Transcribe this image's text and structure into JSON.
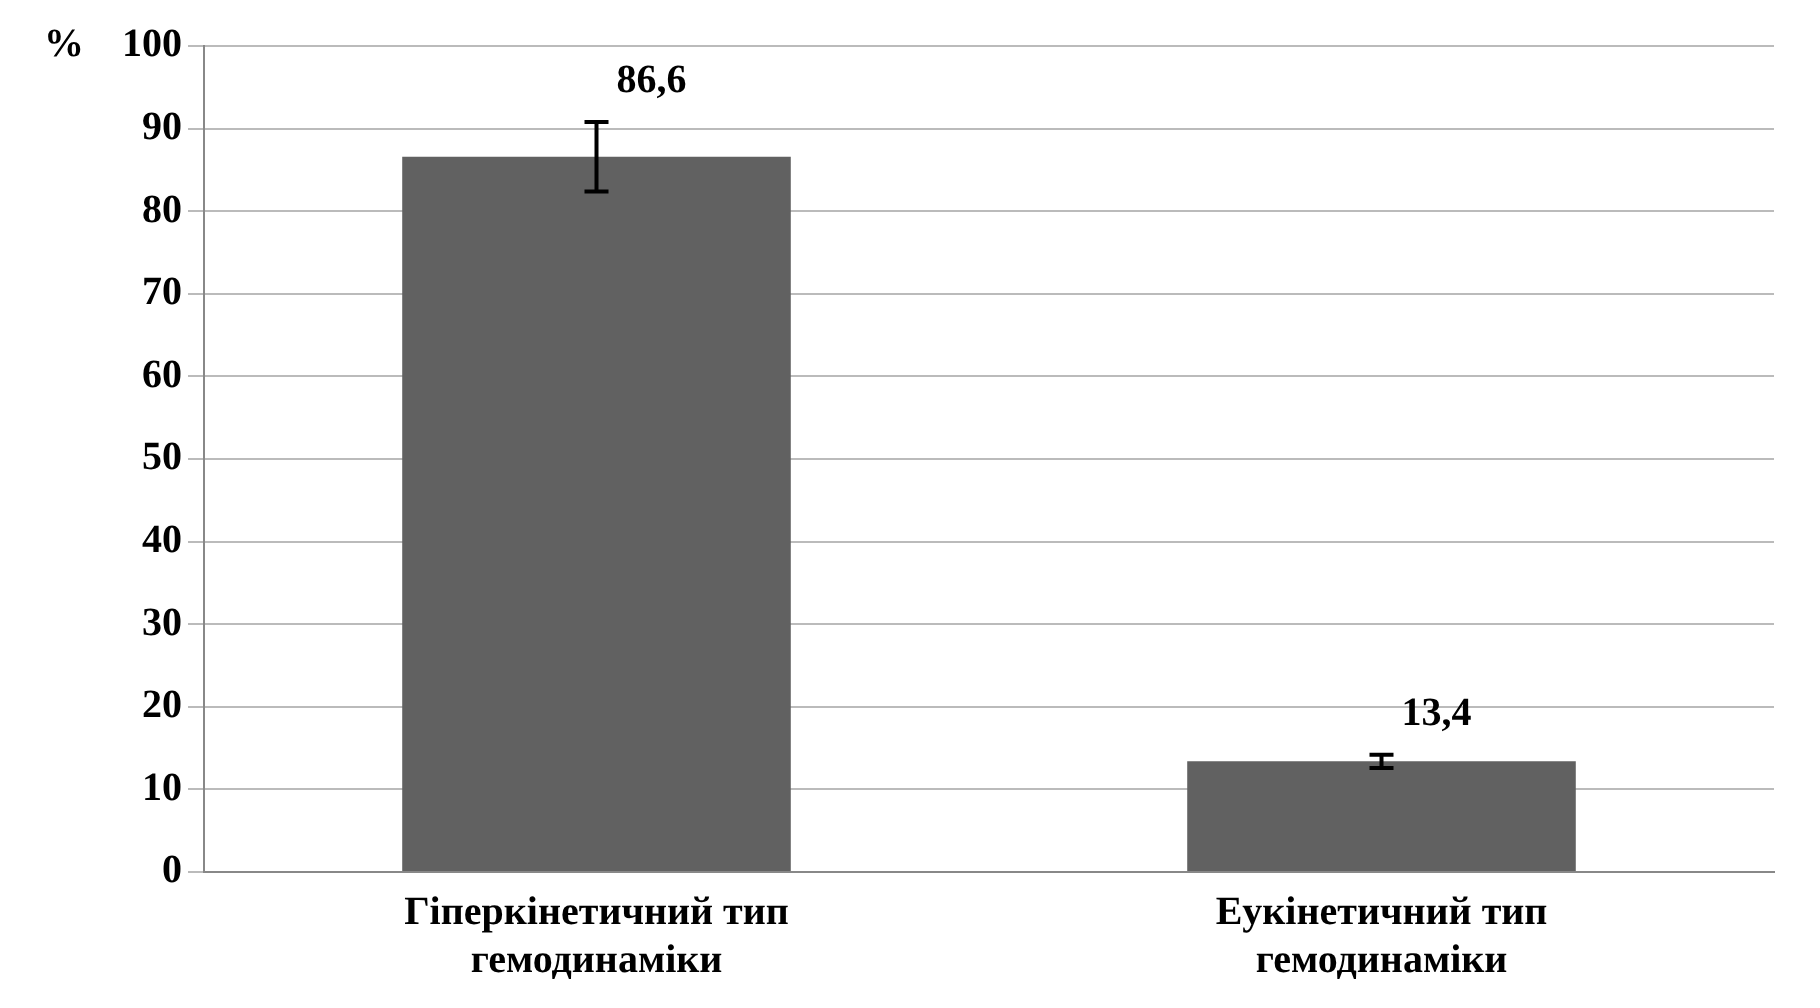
{
  "chart_data": {
    "type": "bar",
    "ylabel": "%",
    "categories": [
      "Гіперкінетичний тип гемодинаміки",
      "Еукінетичний тип гемодинаміки"
    ],
    "values": [
      86.6,
      13.4
    ],
    "color": "#616161",
    "errors": [
      4.2,
      0.8
    ],
    "value_labels": [
      "86,6",
      "13,4"
    ],
    "ylim": [
      0,
      100
    ],
    "yticks": [
      0,
      10,
      20,
      30,
      40,
      50,
      60,
      70,
      80,
      90,
      100
    ],
    "grid": "y",
    "legend": false
  }
}
